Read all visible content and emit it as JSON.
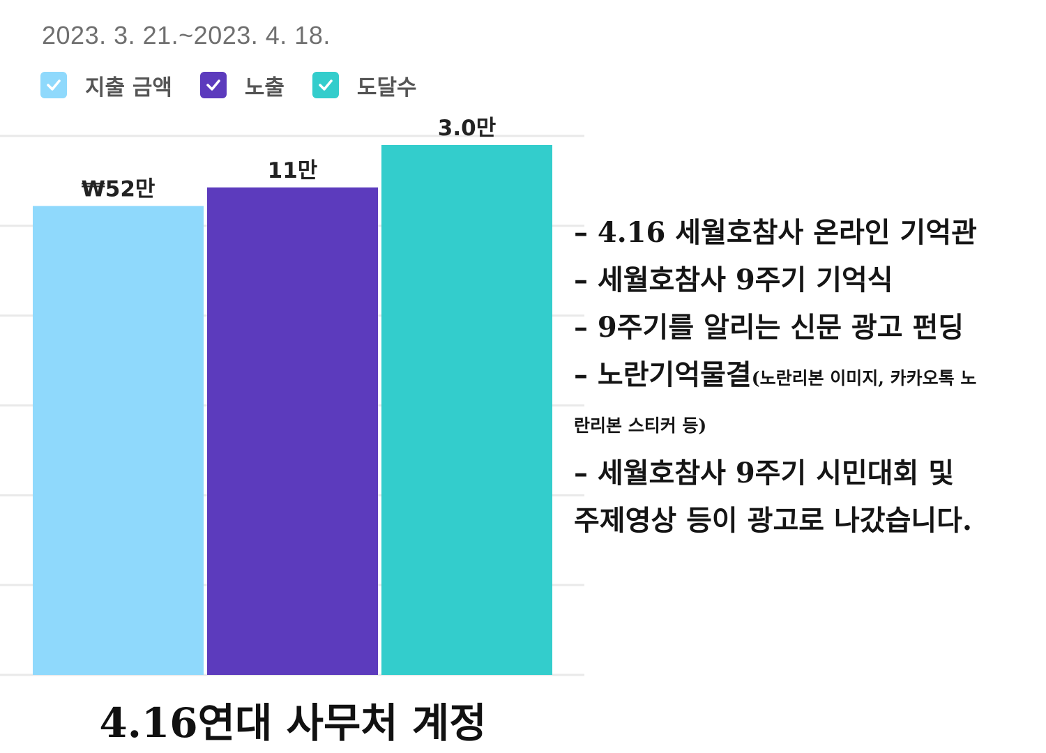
{
  "date_range": "2023. 3. 21.~2023. 4. 18.",
  "legend": [
    {
      "label": "지출 금액",
      "color": "#8fd9fc"
    },
    {
      "label": "노출",
      "color": "#5c3bbd"
    },
    {
      "label": "도달수",
      "color": "#33cdcc"
    }
  ],
  "chart_data": {
    "type": "bar",
    "title": "4.16연대 사무처 계정",
    "grid": true,
    "series": [
      {
        "name": "지출 금액",
        "value_label": "₩52만",
        "relative_height": 0.885,
        "color": "#8fd9fc"
      },
      {
        "name": "노출",
        "value_label": "11만",
        "relative_height": 0.92,
        "color": "#5c3bbd"
      },
      {
        "name": "도달수",
        "value_label": "3.0만",
        "relative_height": 1.0,
        "color": "#33cdcc"
      }
    ]
  },
  "notes": {
    "line1": "– 4.16 세월호참사 온라인 기억관",
    "line2": "– 세월호참사 9주기 기억식",
    "line3": "– 9주기를 알리는 신문 광고 펀딩",
    "line4_main": "– 노란기억물결",
    "line4_small": "(노란리본 이미지, 카카오톡 노",
    "line4_cont": "란리본 스티커 등)",
    "line5": "– 세월호참사 9주기 시민대회 및",
    "line6": "주제영상 등이 광고로 나갔습니다."
  },
  "colors": {
    "check_mark": "#ffffff",
    "gridline": "#e9e9e9",
    "value_label": "#222222"
  }
}
